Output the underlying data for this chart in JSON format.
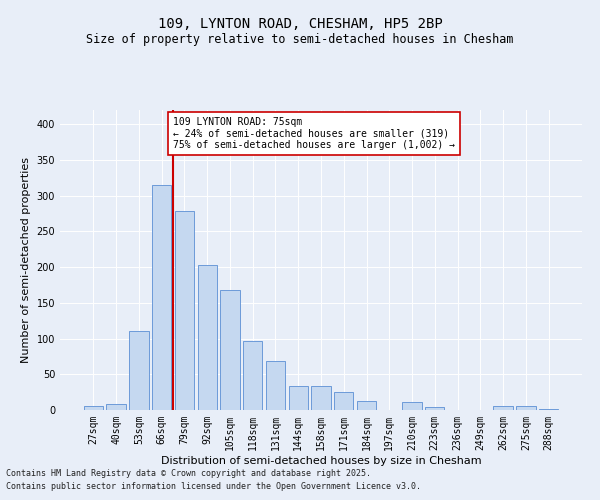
{
  "title_line1": "109, LYNTON ROAD, CHESHAM, HP5 2BP",
  "title_line2": "Size of property relative to semi-detached houses in Chesham",
  "xlabel": "Distribution of semi-detached houses by size in Chesham",
  "ylabel": "Number of semi-detached properties",
  "categories": [
    "27sqm",
    "40sqm",
    "53sqm",
    "66sqm",
    "79sqm",
    "92sqm",
    "105sqm",
    "118sqm",
    "131sqm",
    "144sqm",
    "158sqm",
    "171sqm",
    "184sqm",
    "197sqm",
    "210sqm",
    "223sqm",
    "236sqm",
    "249sqm",
    "262sqm",
    "275sqm",
    "288sqm"
  ],
  "values": [
    5,
    9,
    110,
    315,
    278,
    203,
    168,
    97,
    69,
    33,
    33,
    25,
    13,
    0,
    11,
    4,
    0,
    0,
    6,
    6,
    2
  ],
  "bar_color": "#c5d8f0",
  "bar_edge_color": "#5b8fd4",
  "vline_x_index": 3,
  "vline_color": "#cc0000",
  "annotation_text": "109 LYNTON ROAD: 75sqm\n← 24% of semi-detached houses are smaller (319)\n75% of semi-detached houses are larger (1,002) →",
  "annotation_box_facecolor": "#ffffff",
  "annotation_box_edgecolor": "#cc0000",
  "ylim": [
    0,
    420
  ],
  "yticks": [
    0,
    50,
    100,
    150,
    200,
    250,
    300,
    350,
    400
  ],
  "footnote1": "Contains HM Land Registry data © Crown copyright and database right 2025.",
  "footnote2": "Contains public sector information licensed under the Open Government Licence v3.0.",
  "bg_color": "#e8eef8",
  "plot_bg_color": "#e8eef8",
  "grid_color": "#ffffff",
  "title1_fontsize": 10,
  "title2_fontsize": 8.5,
  "tick_fontsize": 7,
  "label_fontsize": 8,
  "annot_fontsize": 7,
  "footnote_fontsize": 6
}
